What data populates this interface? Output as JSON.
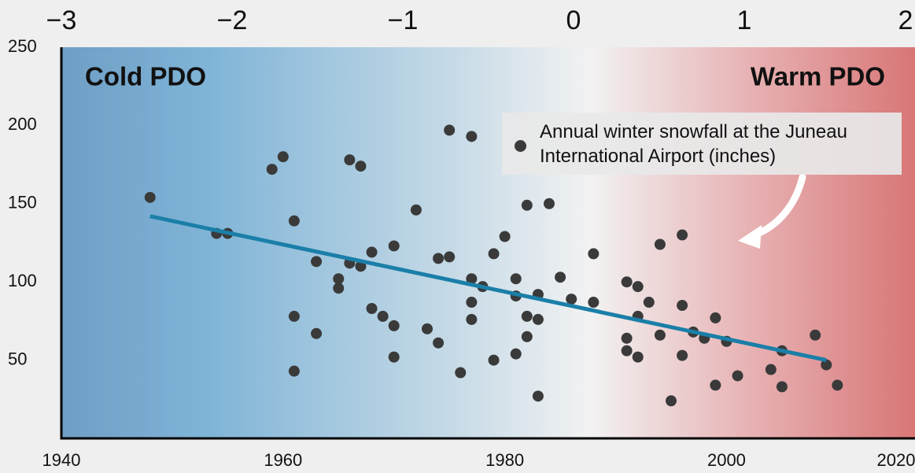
{
  "chart_data": {
    "type": "scatter",
    "annotations": [
      "Cold PDO",
      "Warm PDO"
    ],
    "xlim": [
      1940,
      2017
    ],
    "xticks": [
      1940,
      1960,
      1980,
      2000,
      2020
    ],
    "ylim": [
      0,
      250
    ],
    "yticks": [
      50,
      100,
      150,
      200,
      250
    ],
    "x2lim": [
      -3,
      2
    ],
    "x2ticks": [
      {
        "value": -3,
        "label": "−3"
      },
      {
        "value": -2,
        "label": "−2"
      },
      {
        "value": -1,
        "label": "−1"
      },
      0,
      1,
      2
    ],
    "series": [
      {
        "name": "Annual winter snowfall at the Juneau International Airport (inches)",
        "color": "#3a3a3a",
        "x": [
          1948,
          1954,
          1955,
          1960,
          1959,
          1961,
          1961,
          1961,
          1963,
          1963,
          1965,
          1965,
          1966,
          1966,
          1967,
          1967,
          1968,
          1968,
          1969,
          1970,
          1970,
          1970,
          1972,
          1973,
          1974,
          1974,
          1975,
          1975,
          1976,
          1977,
          1977,
          1977,
          1977,
          1978,
          1979,
          1979,
          1980,
          1981,
          1981,
          1981,
          1982,
          1982,
          1982,
          1983,
          1983,
          1983,
          1984,
          1985,
          1986,
          1988,
          1988,
          1991,
          1991,
          1991,
          1992,
          1992,
          1992,
          1993,
          1994,
          1994,
          1995,
          1996,
          1996,
          1996,
          1997,
          1998,
          1999,
          1999,
          2000,
          2001,
          2004,
          2005,
          2005,
          2008,
          2009,
          2010
        ],
        "values": [
          154,
          131,
          131,
          180,
          172,
          139,
          78,
          43,
          67,
          113,
          102,
          96,
          178,
          112,
          174,
          110,
          83,
          119,
          78,
          52,
          72,
          123,
          146,
          70,
          61,
          115,
          197,
          116,
          42,
          76,
          193,
          102,
          87,
          97,
          50,
          118,
          129,
          54,
          102,
          91,
          149,
          78,
          65,
          92,
          76,
          27,
          150,
          103,
          89,
          118,
          87,
          56,
          64,
          100,
          97,
          78,
          52,
          87,
          124,
          66,
          24,
          53,
          130,
          85,
          68,
          64,
          34,
          77,
          62,
          40,
          44,
          56,
          33,
          66,
          47,
          34
        ]
      },
      {
        "name": "Trend",
        "type": "line",
        "color": "#1a7fa8",
        "x": [
          1948,
          2009
        ],
        "values": [
          142,
          50
        ]
      }
    ]
  }
}
